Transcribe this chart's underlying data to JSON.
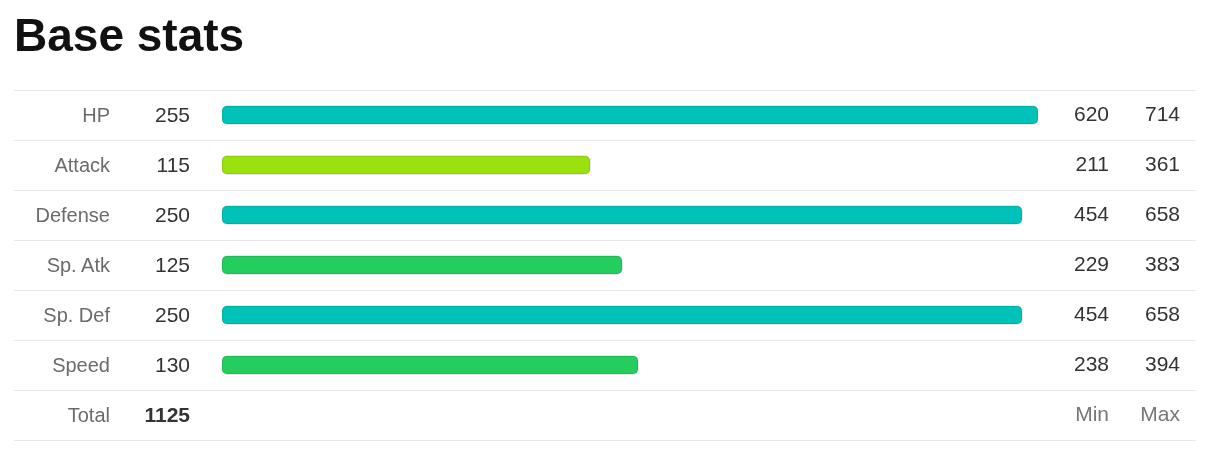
{
  "chart_data": {
    "type": "bar",
    "orientation": "horizontal",
    "title": "Base stats",
    "categories": [
      "HP",
      "Attack",
      "Defense",
      "Sp. Atk",
      "Sp. Def",
      "Speed",
      "Total"
    ],
    "values": [
      255,
      115,
      250,
      125,
      250,
      130,
      null
    ],
    "value_labels": [
      "255",
      "115",
      "250",
      "125",
      "250",
      "130",
      "1125"
    ],
    "colors": [
      "#00c2b8",
      "#9be10d",
      "#00c2b8",
      "#23cd5e",
      "#00c2b8",
      "#23cd5e",
      null
    ],
    "grid": "y",
    "annotations": [
      "620",
      "714",
      "211",
      "361",
      "454",
      "658",
      "229",
      "383",
      "454",
      "658",
      "238",
      "394",
      "Min",
      "Max"
    ]
  }
}
